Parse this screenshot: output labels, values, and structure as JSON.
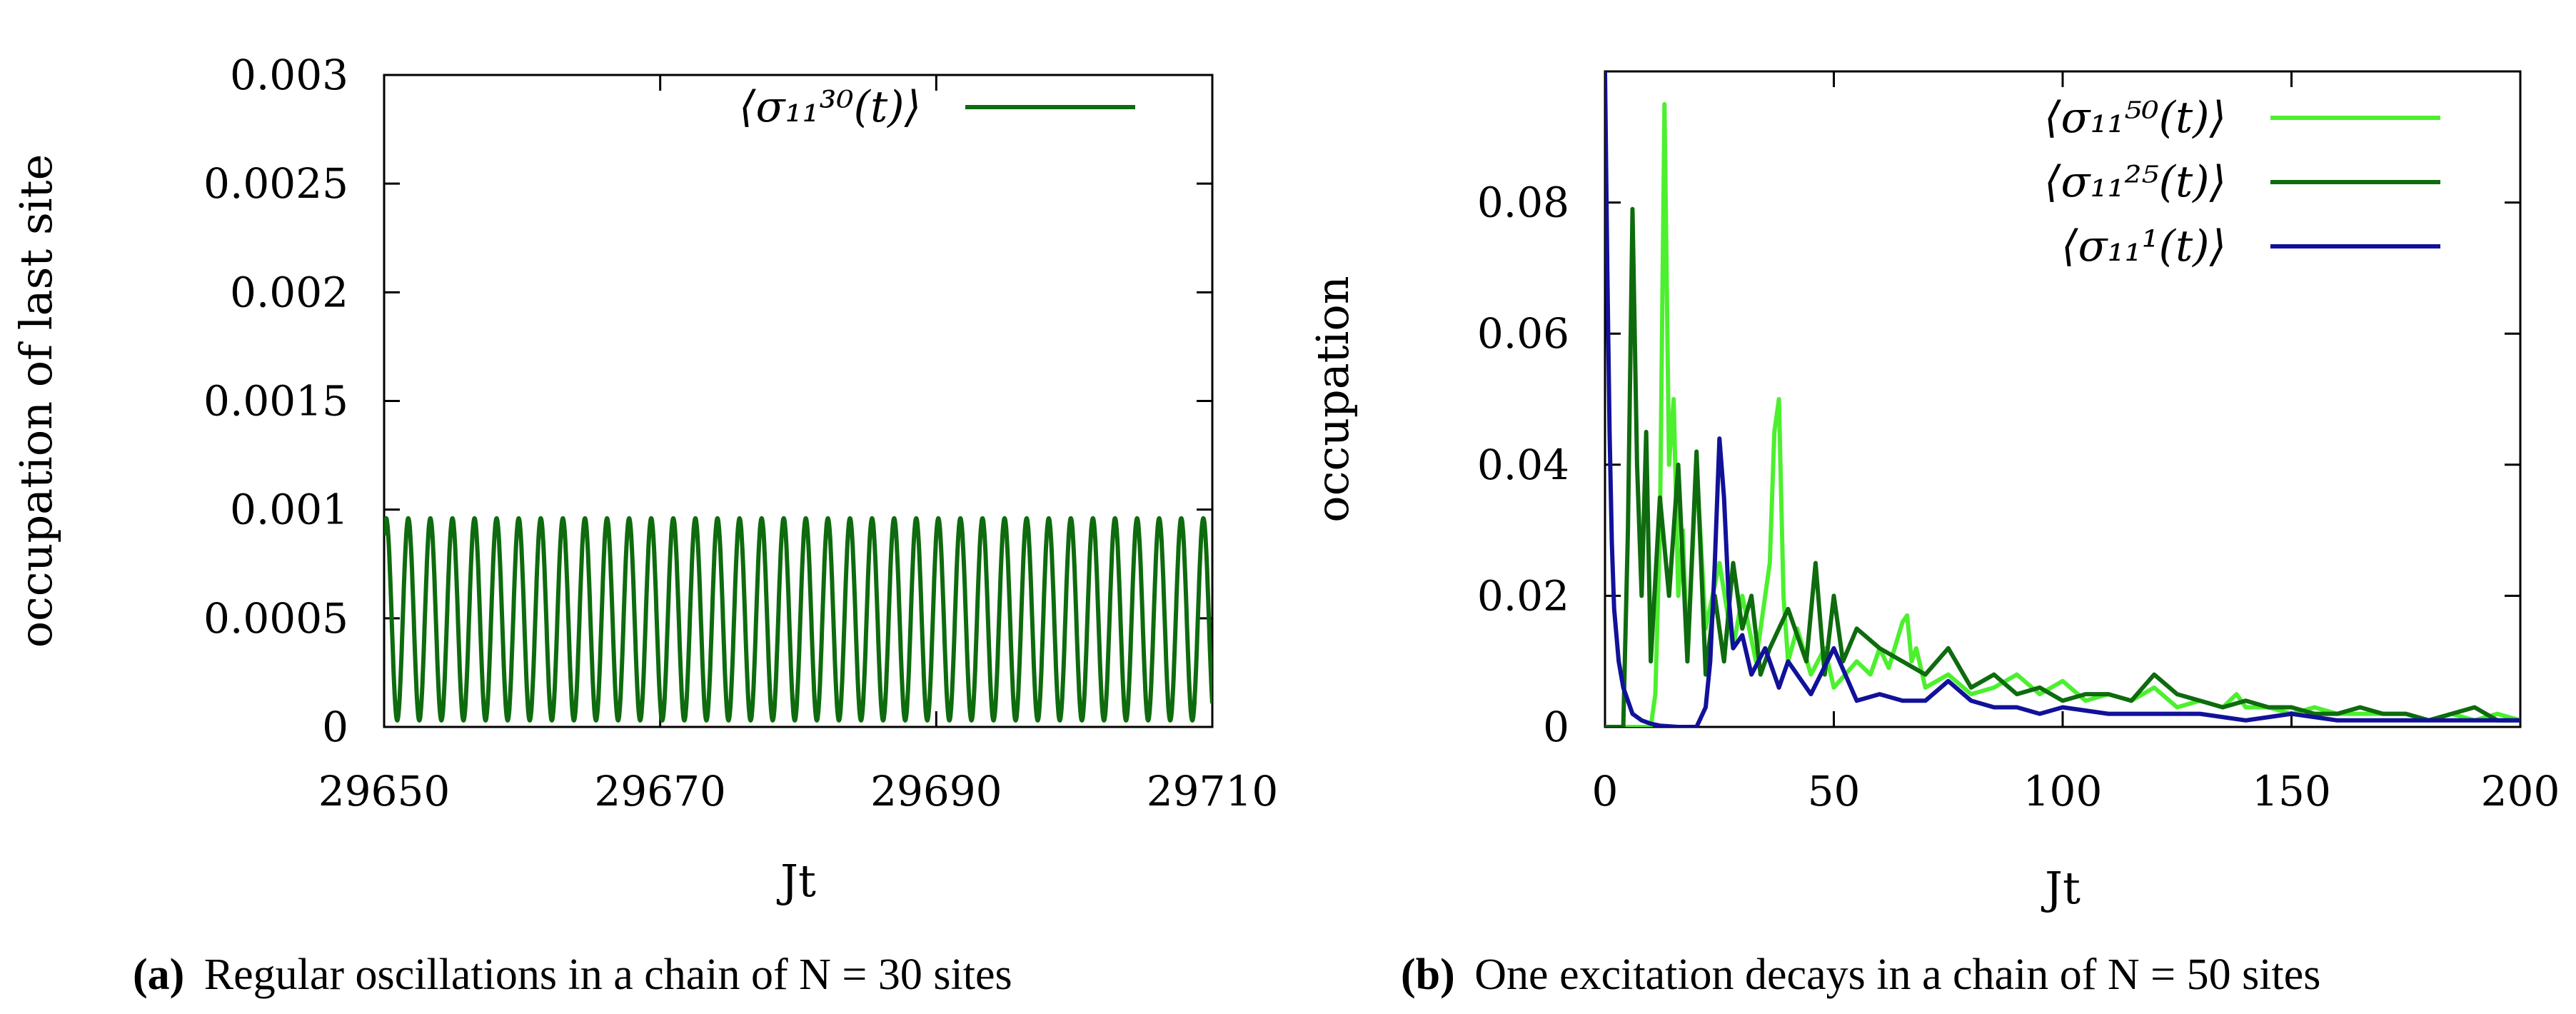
{
  "chart_data": [
    {
      "id": "a",
      "type": "line",
      "caption_tag": "(a)",
      "caption_text": "Regular oscillations in a chain of N = 30 sites",
      "xlabel": "Jt",
      "ylabel": "occupation of last site",
      "xlim": [
        29650,
        29710
      ],
      "ylim": [
        0,
        0.003
      ],
      "xticks": [
        29650,
        29670,
        29690,
        29710
      ],
      "xtick_labels": [
        "29650",
        "29670",
        "29690",
        "29710"
      ],
      "yticks": [
        0,
        0.0005,
        0.001,
        0.0015,
        0.002,
        0.0025,
        0.003
      ],
      "ytick_labels": [
        "0",
        "0.0005",
        "0.001",
        "0.0015",
        "0.002",
        "0.0025",
        "0.003"
      ],
      "legend_position": "top-right",
      "series": [
        {
          "name": "⟨σ₁₁³⁰(t)⟩",
          "color": "#0e6b0e",
          "model": "oscillation",
          "x_start": 29650,
          "x_end": 29710,
          "period": 1.6,
          "min": 3e-05,
          "max": 0.00096,
          "x_phase": 29650.15
        }
      ]
    },
    {
      "id": "b",
      "type": "line",
      "caption_tag": "(b)",
      "caption_text": "One excitation decays in a chain of N = 50 sites",
      "xlabel": "Jt",
      "ylabel": "occupation",
      "xlim": [
        0,
        200
      ],
      "ylim": [
        0,
        0.1
      ],
      "xticks": [
        0,
        50,
        100,
        150,
        200
      ],
      "xtick_labels": [
        "0",
        "50",
        "100",
        "150",
        "200"
      ],
      "yticks": [
        0,
        0.02,
        0.04,
        0.06,
        0.08
      ],
      "ytick_labels": [
        "0",
        "0.02",
        "0.04",
        "0.06",
        "0.08"
      ],
      "legend_position": "top-right",
      "series": [
        {
          "name": "⟨σ₁₁⁵⁰(t)⟩",
          "color": "#4cf02e",
          "x": [
            0,
            10,
            11,
            12,
            13,
            14,
            15,
            16,
            17,
            18,
            20,
            22,
            25,
            28,
            30,
            33,
            36,
            37,
            38,
            39,
            40,
            42,
            45,
            48,
            50,
            55,
            58,
            60,
            62,
            65,
            66,
            67,
            68,
            70,
            75,
            80,
            85,
            90,
            95,
            100,
            105,
            110,
            115,
            120,
            125,
            130,
            135,
            138,
            140,
            145,
            150,
            155,
            160,
            165,
            170,
            175,
            180,
            185,
            190,
            195,
            200
          ],
          "y": [
            0,
            0,
            0.005,
            0.03,
            0.095,
            0.04,
            0.05,
            0.02,
            0.03,
            0.01,
            0.04,
            0.015,
            0.025,
            0.012,
            0.02,
            0.01,
            0.025,
            0.045,
            0.05,
            0.02,
            0.01,
            0.015,
            0.008,
            0.012,
            0.006,
            0.01,
            0.008,
            0.012,
            0.009,
            0.016,
            0.017,
            0.01,
            0.012,
            0.006,
            0.008,
            0.005,
            0.006,
            0.008,
            0.005,
            0.007,
            0.004,
            0.005,
            0.004,
            0.006,
            0.003,
            0.004,
            0.003,
            0.005,
            0.003,
            0.003,
            0.002,
            0.003,
            0.002,
            0.002,
            0.002,
            0.002,
            0.001,
            0.002,
            0.001,
            0.002,
            0.001
          ]
        },
        {
          "name": "⟨σ₁₁²⁵(t)⟩",
          "color": "#0e6b0e",
          "x": [
            0,
            4,
            5,
            6,
            7,
            8,
            9,
            10,
            12,
            14,
            16,
            18,
            20,
            22,
            24,
            26,
            28,
            30,
            32,
            34,
            36,
            40,
            44,
            46,
            48,
            50,
            52,
            55,
            60,
            65,
            70,
            75,
            80,
            85,
            90,
            95,
            100,
            105,
            110,
            115,
            120,
            125,
            130,
            135,
            140,
            145,
            150,
            155,
            160,
            165,
            170,
            175,
            180,
            185,
            190,
            195,
            200
          ],
          "y": [
            0,
            0,
            0.03,
            0.079,
            0.04,
            0.02,
            0.045,
            0.01,
            0.035,
            0.02,
            0.04,
            0.01,
            0.042,
            0.008,
            0.02,
            0.01,
            0.025,
            0.015,
            0.02,
            0.008,
            0.012,
            0.018,
            0.01,
            0.025,
            0.008,
            0.02,
            0.01,
            0.015,
            0.012,
            0.01,
            0.008,
            0.012,
            0.006,
            0.008,
            0.005,
            0.006,
            0.004,
            0.005,
            0.005,
            0.004,
            0.008,
            0.005,
            0.004,
            0.003,
            0.004,
            0.003,
            0.003,
            0.002,
            0.002,
            0.003,
            0.002,
            0.002,
            0.001,
            0.002,
            0.003,
            0.001,
            0.001
          ]
        },
        {
          "name": "⟨σ₁₁¹(t)⟩",
          "color": "#11119a",
          "x": [
            0,
            0.5,
            1,
            1.5,
            2,
            3,
            4,
            5,
            6,
            8,
            10,
            12,
            16,
            20,
            22,
            23,
            24,
            25,
            26,
            27,
            28,
            30,
            32,
            35,
            38,
            40,
            45,
            50,
            55,
            60,
            65,
            70,
            75,
            80,
            85,
            90,
            95,
            100,
            110,
            120,
            130,
            140,
            150,
            160,
            170,
            180,
            190,
            200
          ],
          "y": [
            0.1,
            0.07,
            0.045,
            0.028,
            0.018,
            0.01,
            0.006,
            0.004,
            0.002,
            0.001,
            0.0005,
            0.0002,
            0,
            0,
            0.003,
            0.01,
            0.025,
            0.044,
            0.035,
            0.02,
            0.012,
            0.014,
            0.008,
            0.012,
            0.006,
            0.01,
            0.005,
            0.012,
            0.004,
            0.005,
            0.004,
            0.004,
            0.007,
            0.004,
            0.003,
            0.003,
            0.002,
            0.003,
            0.002,
            0.002,
            0.002,
            0.001,
            0.002,
            0.001,
            0.001,
            0.001,
            0.001,
            0.001
          ]
        }
      ]
    }
  ]
}
